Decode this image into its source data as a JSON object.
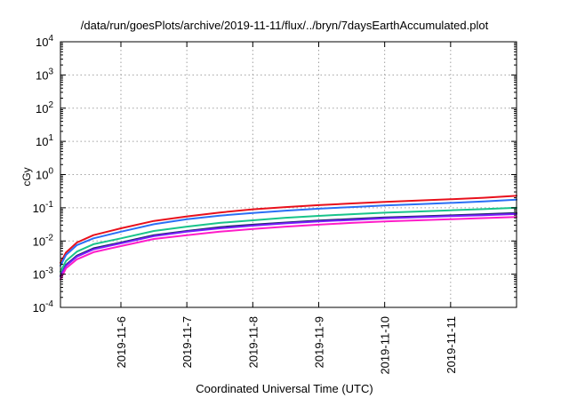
{
  "chart_data": {
    "type": "line",
    "title": "/data/run/goesPlots/archive/2019-11-11/flux/../bryn/7daysEarthAccumulated.plot",
    "xlabel": "Coordinated Universal Time (UTC)",
    "ylabel": "cGy",
    "yscale": "log",
    "ylim": [
      0.0001,
      10000
    ],
    "xlim": [
      "2019-11-05 02:00",
      "2019-11-12 00:00"
    ],
    "grid": true,
    "legend": "none",
    "y_ticks": [
      {
        "base": "10",
        "exp": "-4"
      },
      {
        "base": "10",
        "exp": "-3"
      },
      {
        "base": "10",
        "exp": "-2"
      },
      {
        "base": "10",
        "exp": "-1"
      },
      {
        "base": "10",
        "exp": "0"
      },
      {
        "base": "10",
        "exp": "1"
      },
      {
        "base": "10",
        "exp": "2"
      },
      {
        "base": "10",
        "exp": "3"
      },
      {
        "base": "10",
        "exp": "4"
      }
    ],
    "x_ticks": [
      "2019-11-6",
      "2019-11-7",
      "2019-11-8",
      "2019-11-9",
      "2019-11-10",
      "2019-11-11"
    ],
    "x": [
      "2019-11-05 02:00",
      "2019-11-05 04:00",
      "2019-11-05 08:00",
      "2019-11-05 14:00",
      "2019-11-06 00:00",
      "2019-11-06 12:00",
      "2019-11-07 00:00",
      "2019-11-07 12:00",
      "2019-11-08 00:00",
      "2019-11-08 12:00",
      "2019-11-09 00:00",
      "2019-11-09 12:00",
      "2019-11-10 00:00",
      "2019-11-10 12:00",
      "2019-11-11 00:00",
      "2019-11-11 12:00",
      "2019-11-12 00:00"
    ],
    "series": [
      {
        "color": "#e8101c",
        "values": [
          0.0022,
          0.0045,
          0.009,
          0.015,
          0.024,
          0.04,
          0.055,
          0.072,
          0.09,
          0.105,
          0.12,
          0.135,
          0.15,
          0.165,
          0.18,
          0.2,
          0.23
        ]
      },
      {
        "color": "#2a6ff5",
        "values": [
          0.0018,
          0.0038,
          0.0075,
          0.012,
          0.019,
          0.032,
          0.045,
          0.058,
          0.07,
          0.082,
          0.094,
          0.105,
          0.117,
          0.128,
          0.14,
          0.155,
          0.175
        ]
      },
      {
        "color": "#18c48a",
        "values": [
          0.0012,
          0.0025,
          0.0048,
          0.008,
          0.012,
          0.02,
          0.027,
          0.035,
          0.042,
          0.05,
          0.057,
          0.064,
          0.071,
          0.077,
          0.084,
          0.091,
          0.1
        ]
      },
      {
        "color": "#1c2a6a",
        "values": [
          0.0009,
          0.0019,
          0.0036,
          0.006,
          0.009,
          0.015,
          0.02,
          0.026,
          0.031,
          0.036,
          0.041,
          0.046,
          0.051,
          0.055,
          0.059,
          0.064,
          0.07
        ]
      },
      {
        "color": "#7a1cff",
        "values": [
          0.00085,
          0.0018,
          0.0034,
          0.0056,
          0.0085,
          0.014,
          0.019,
          0.024,
          0.029,
          0.034,
          0.039,
          0.043,
          0.048,
          0.052,
          0.056,
          0.06,
          0.065
        ]
      },
      {
        "color": "#ff1cc8",
        "values": [
          0.0007,
          0.0015,
          0.0028,
          0.0046,
          0.007,
          0.0115,
          0.015,
          0.019,
          0.023,
          0.027,
          0.031,
          0.035,
          0.039,
          0.042,
          0.045,
          0.049,
          0.053
        ]
      }
    ]
  }
}
